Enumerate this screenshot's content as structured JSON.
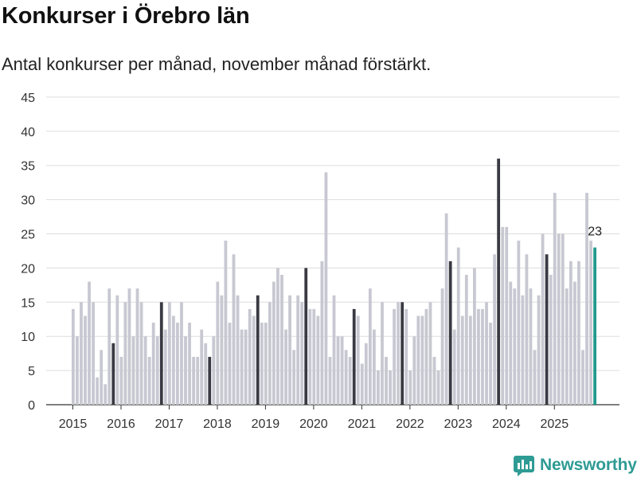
{
  "title": "Konkurser i Örebro län",
  "subtitle": "Antal konkurser per månad, november månad förstärkt.",
  "brand": "Newsworthy",
  "colors": {
    "bar": "#c8c8d2",
    "highlight": "#3a3a44",
    "latest": "#1f9a8e",
    "grid": "#dddddd",
    "brand": "#2e9b94"
  },
  "chart_data": {
    "type": "bar",
    "title": "Konkurser i Örebro län",
    "xlabel": "",
    "ylabel": "",
    "ylim": [
      0,
      45
    ],
    "yticks": [
      0,
      5,
      10,
      15,
      20,
      25,
      30,
      35,
      40,
      45
    ],
    "xticks": [
      "2015",
      "2016",
      "2017",
      "2018",
      "2019",
      "2020",
      "2021",
      "2022",
      "2023",
      "2024",
      "2025"
    ],
    "start": "2015-01",
    "highlight_month": "november",
    "latest_label": "23",
    "values": [
      14,
      10,
      15,
      13,
      18,
      15,
      4,
      8,
      3,
      17,
      9,
      16,
      7,
      15,
      17,
      10,
      17,
      15,
      10,
      7,
      12,
      10,
      15,
      11,
      15,
      13,
      12,
      15,
      10,
      12,
      7,
      7,
      11,
      9,
      7,
      10,
      18,
      16,
      24,
      12,
      22,
      16,
      11,
      11,
      14,
      13,
      16,
      12,
      12,
      15,
      18,
      20,
      19,
      11,
      16,
      8,
      16,
      15,
      20,
      14,
      14,
      13,
      21,
      34,
      7,
      16,
      10,
      10,
      8,
      7,
      14,
      13,
      6,
      9,
      17,
      11,
      5,
      15,
      7,
      5,
      14,
      15,
      15,
      14,
      5,
      10,
      13,
      13,
      14,
      15,
      7,
      5,
      17,
      28,
      21,
      11,
      23,
      13,
      19,
      13,
      20,
      14,
      14,
      15,
      12,
      22,
      36,
      26,
      26,
      18,
      17,
      24,
      16,
      22,
      17,
      8,
      16,
      25,
      22,
      19,
      31,
      25,
      25,
      17,
      21,
      18,
      21,
      8,
      31,
      24,
      23
    ]
  }
}
